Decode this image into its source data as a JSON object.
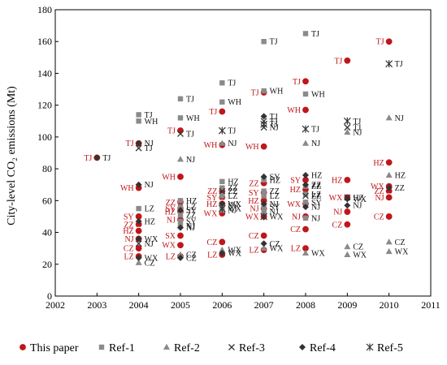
{
  "chart_data": {
    "type": "scatter",
    "ylabel": "City-level CO₂ emissions (Mt)",
    "xlim": [
      2002,
      2011
    ],
    "ylim": [
      0,
      180
    ],
    "x_ticks": [
      "2002",
      "2003",
      "2004",
      "2005",
      "2006",
      "2007",
      "2008",
      "2009",
      "2010",
      "2011"
    ],
    "y_ticks": [
      "0",
      "20",
      "40",
      "60",
      "80",
      "100",
      "120",
      "140",
      "160",
      "180"
    ],
    "grid": false,
    "legend_placement": "bottom",
    "legend": [
      "This paper",
      "Ref-1",
      "Ref-2",
      "Ref-3",
      "Ref-4",
      "Ref-5"
    ],
    "colors": {
      "this_paper": "#c0161a",
      "ref_grey": "#8a8a8a",
      "ref_dark": "#333333",
      "label_red": "#c0161a"
    },
    "series": [
      {
        "name": "This paper",
        "marker": "circle",
        "points": [
          {
            "x": 2003,
            "y": 87,
            "label": "TJ"
          },
          {
            "x": 2004,
            "y": 96,
            "label": "TJ"
          },
          {
            "x": 2004,
            "y": 68,
            "label": "WH"
          },
          {
            "x": 2004,
            "y": 50,
            "label": "SY"
          },
          {
            "x": 2004,
            "y": 45,
            "label": "ZZ"
          },
          {
            "x": 2004,
            "y": 41,
            "label": "HZ"
          },
          {
            "x": 2004,
            "y": 36,
            "label": "NJ"
          },
          {
            "x": 2004,
            "y": 30,
            "label": "CZ"
          },
          {
            "x": 2004,
            "y": 25,
            "label": "LZ"
          },
          {
            "x": 2005,
            "y": 104,
            "label": "TJ"
          },
          {
            "x": 2005,
            "y": 75,
            "label": "WH"
          },
          {
            "x": 2005,
            "y": 59,
            "label": "ZZ"
          },
          {
            "x": 2005,
            "y": 55,
            "label": "SY"
          },
          {
            "x": 2005,
            "y": 53,
            "label": "HZ"
          },
          {
            "x": 2005,
            "y": 48,
            "label": "NJ"
          },
          {
            "x": 2005,
            "y": 38,
            "label": "SX"
          },
          {
            "x": 2005,
            "y": 32,
            "label": "WX"
          },
          {
            "x": 2005,
            "y": 25,
            "label": "LZ"
          },
          {
            "x": 2006,
            "y": 116,
            "label": "TJ"
          },
          {
            "x": 2006,
            "y": 95,
            "label": "WH"
          },
          {
            "x": 2006,
            "y": 66,
            "label": "ZZ"
          },
          {
            "x": 2006,
            "y": 62,
            "label": "SY"
          },
          {
            "x": 2006,
            "y": 58,
            "label": "HZ"
          },
          {
            "x": 2006,
            "y": 52,
            "label": "WX"
          },
          {
            "x": 2006,
            "y": 34,
            "label": "CZ"
          },
          {
            "x": 2006,
            "y": 26,
            "label": "LZ"
          },
          {
            "x": 2007,
            "y": 128,
            "label": "TJ"
          },
          {
            "x": 2007,
            "y": 94,
            "label": "WH"
          },
          {
            "x": 2007,
            "y": 71,
            "label": "ZZ"
          },
          {
            "x": 2007,
            "y": 65,
            "label": "SY"
          },
          {
            "x": 2007,
            "y": 60,
            "label": "HZ"
          },
          {
            "x": 2007,
            "y": 55,
            "label": "NJ"
          },
          {
            "x": 2007,
            "y": 50,
            "label": "WX"
          },
          {
            "x": 2007,
            "y": 38,
            "label": "CZ"
          },
          {
            "x": 2007,
            "y": 29,
            "label": "LZ"
          },
          {
            "x": 2008,
            "y": 135,
            "label": "TJ"
          },
          {
            "x": 2008,
            "y": 117,
            "label": "WH"
          },
          {
            "x": 2008,
            "y": 73,
            "label": "SY"
          },
          {
            "x": 2008,
            "y": 67,
            "label": "HZ"
          },
          {
            "x": 2008,
            "y": 58,
            "label": "WX"
          },
          {
            "x": 2008,
            "y": 50,
            "label": "NJ"
          },
          {
            "x": 2008,
            "y": 42,
            "label": "CZ"
          },
          {
            "x": 2008,
            "y": 30,
            "label": "LZ"
          },
          {
            "x": 2009,
            "y": 148,
            "label": "TJ"
          },
          {
            "x": 2009,
            "y": 73,
            "label": "HZ"
          },
          {
            "x": 2009,
            "y": 62,
            "label": "WX"
          },
          {
            "x": 2009,
            "y": 53,
            "label": "NJ"
          },
          {
            "x": 2009,
            "y": 45,
            "label": "CZ"
          },
          {
            "x": 2010,
            "y": 160,
            "label": "TJ"
          },
          {
            "x": 2010,
            "y": 84,
            "label": "HZ"
          },
          {
            "x": 2010,
            "y": 69,
            "label": "WX"
          },
          {
            "x": 2010,
            "y": 66,
            "label": "ZZ"
          },
          {
            "x": 2010,
            "y": 62,
            "label": "NJ"
          },
          {
            "x": 2010,
            "y": 50,
            "label": "CZ"
          }
        ]
      },
      {
        "name": "Ref-1",
        "marker": "square",
        "points": [
          {
            "x": 2004,
            "y": 114,
            "label": "TJ"
          },
          {
            "x": 2004,
            "y": 110,
            "label": "WH"
          },
          {
            "x": 2004,
            "y": 55,
            "label": "LZ"
          },
          {
            "x": 2005,
            "y": 124,
            "label": "TJ"
          },
          {
            "x": 2005,
            "y": 112,
            "label": "WH"
          },
          {
            "x": 2005,
            "y": 60,
            "label": "HZ"
          },
          {
            "x": 2005,
            "y": 56,
            "label": "LZ"
          },
          {
            "x": 2005,
            "y": 51,
            "label": "ZZ"
          },
          {
            "x": 2005,
            "y": 47,
            "label": "SY"
          },
          {
            "x": 2005,
            "y": 44,
            "label": "NJ"
          },
          {
            "x": 2006,
            "y": 134,
            "label": "TJ"
          },
          {
            "x": 2006,
            "y": 122,
            "label": "WH"
          },
          {
            "x": 2006,
            "y": 72,
            "label": "HZ"
          },
          {
            "x": 2006,
            "y": 68,
            "label": "ZZ"
          },
          {
            "x": 2006,
            "y": 63,
            "label": "LZ"
          },
          {
            "x": 2006,
            "y": 57,
            "label": "SY"
          },
          {
            "x": 2006,
            "y": 54,
            "label": "NJ"
          },
          {
            "x": 2007,
            "y": 160,
            "label": "TJ"
          },
          {
            "x": 2007,
            "y": 129,
            "label": "WH"
          },
          {
            "x": 2007,
            "y": 73,
            "label": "HZ"
          },
          {
            "x": 2007,
            "y": 66,
            "label": "ZZ"
          },
          {
            "x": 2007,
            "y": 63,
            "label": "LZ"
          },
          {
            "x": 2007,
            "y": 56,
            "label": "SY"
          },
          {
            "x": 2007,
            "y": 53,
            "label": "NJ"
          },
          {
            "x": 2008,
            "y": 165,
            "label": "TJ"
          },
          {
            "x": 2008,
            "y": 127,
            "label": "WH"
          },
          {
            "x": 2008,
            "y": 69,
            "label": "ZZ"
          },
          {
            "x": 2008,
            "y": 64,
            "label": "LZ"
          },
          {
            "x": 2008,
            "y": 59,
            "label": "SY"
          },
          {
            "x": 2008,
            "y": 49,
            "label": "NJ"
          }
        ]
      },
      {
        "name": "Ref-2",
        "marker": "triangle",
        "points": [
          {
            "x": 2004,
            "y": 21,
            "label": "CZ"
          },
          {
            "x": 2005,
            "y": 26,
            "label": "CZ"
          },
          {
            "x": 2005,
            "y": 86,
            "label": "NJ"
          },
          {
            "x": 2006,
            "y": 96,
            "label": "NJ"
          },
          {
            "x": 2006,
            "y": 29,
            "label": "WX"
          },
          {
            "x": 2007,
            "y": 30,
            "label": "WX"
          },
          {
            "x": 2008,
            "y": 96,
            "label": "NJ"
          },
          {
            "x": 2008,
            "y": 27,
            "label": "WX"
          },
          {
            "x": 2009,
            "y": 103,
            "label": "NJ"
          },
          {
            "x": 2009,
            "y": 31,
            "label": "CZ"
          },
          {
            "x": 2009,
            "y": 26,
            "label": "WX"
          },
          {
            "x": 2010,
            "y": 112,
            "label": "NJ"
          },
          {
            "x": 2010,
            "y": 76,
            "label": "HZ"
          },
          {
            "x": 2010,
            "y": 34,
            "label": "CZ"
          },
          {
            "x": 2010,
            "y": 28,
            "label": "WX"
          }
        ]
      },
      {
        "name": "Ref-3",
        "marker": "cross",
        "points": [
          {
            "x": 2004,
            "y": 93,
            "label": "TJ"
          },
          {
            "x": 2005,
            "y": 102,
            "label": "TJ"
          },
          {
            "x": 2007,
            "y": 106,
            "label": "NJ"
          },
          {
            "x": 2007,
            "y": 110,
            "label": "TJ"
          },
          {
            "x": 2009,
            "y": 106,
            "label": "TJ"
          },
          {
            "x": 2009,
            "y": 62,
            "label": "HZ"
          },
          {
            "x": 2004,
            "y": 33,
            "label": "NJ"
          },
          {
            "x": 2006,
            "y": 66,
            "label": "ZZ"
          },
          {
            "x": 2008,
            "y": 63,
            "label": "ZZ"
          }
        ]
      },
      {
        "name": "Ref-4",
        "marker": "diamond",
        "points": [
          {
            "x": 2003,
            "y": 87,
            "label": "TJ"
          },
          {
            "x": 2004,
            "y": 96,
            "label": "NJ"
          },
          {
            "x": 2004,
            "y": 70,
            "label": "NJ"
          },
          {
            "x": 2004,
            "y": 47,
            "label": "HZ"
          },
          {
            "x": 2004,
            "y": 36,
            "label": "WX"
          },
          {
            "x": 2004,
            "y": 24,
            "label": "WX"
          },
          {
            "x": 2005,
            "y": 54,
            "label": "SY"
          },
          {
            "x": 2005,
            "y": 43,
            "label": "NJ"
          },
          {
            "x": 2005,
            "y": 24,
            "label": "CZ"
          },
          {
            "x": 2006,
            "y": 58,
            "label": "WX"
          },
          {
            "x": 2006,
            "y": 27,
            "label": "WX"
          },
          {
            "x": 2007,
            "y": 113,
            "label": "TJ"
          },
          {
            "x": 2007,
            "y": 75,
            "label": "SY"
          },
          {
            "x": 2007,
            "y": 58,
            "label": "NJ"
          },
          {
            "x": 2007,
            "y": 33,
            "label": "CZ"
          },
          {
            "x": 2008,
            "y": 76,
            "label": "HZ"
          },
          {
            "x": 2008,
            "y": 70,
            "label": "ZZ"
          },
          {
            "x": 2008,
            "y": 56,
            "label": "NJ"
          },
          {
            "x": 2009,
            "y": 61,
            "label": "WX"
          },
          {
            "x": 2009,
            "y": 57,
            "label": "NJ"
          },
          {
            "x": 2010,
            "y": 68,
            "label": "ZZ"
          }
        ]
      },
      {
        "name": "Ref-5",
        "marker": "star",
        "points": [
          {
            "x": 2006,
            "y": 104,
            "label": "TJ"
          },
          {
            "x": 2007,
            "y": 108,
            "label": "TJ"
          },
          {
            "x": 2008,
            "y": 105,
            "label": "TJ"
          },
          {
            "x": 2009,
            "y": 110,
            "label": "TJ"
          },
          {
            "x": 2010,
            "y": 146,
            "label": "TJ"
          },
          {
            "x": 2006,
            "y": 55,
            "label": "WX"
          },
          {
            "x": 2007,
            "y": 50,
            "label": "WX"
          }
        ]
      }
    ]
  }
}
